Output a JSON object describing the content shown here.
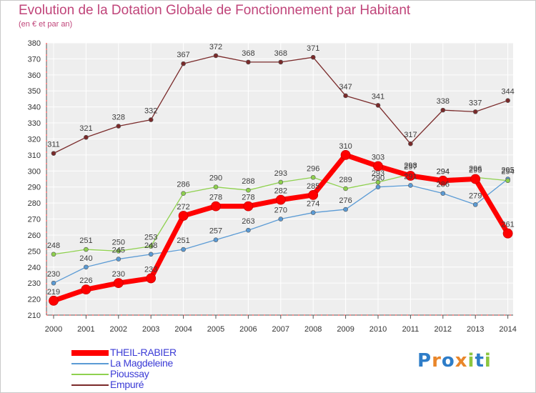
{
  "chart_data": {
    "type": "line",
    "title": "Evolution de la Dotation Globale de Fonctionnement par Habitant",
    "subtitle": "(en € et par an)",
    "xlabel": "",
    "ylabel": "",
    "ylim": [
      210,
      380
    ],
    "ytick_step": 10,
    "grid": true,
    "categories": [
      "2000",
      "2001",
      "2002",
      "2003",
      "2004",
      "2005",
      "2006",
      "2007",
      "2008",
      "2009",
      "2010",
      "2011",
      "2012",
      "2013",
      "2014"
    ],
    "series": [
      {
        "name": "THEIL-RABIER",
        "color": "#ff0000",
        "values": [
          219,
          226,
          230,
          233,
          272,
          278,
          278,
          282,
          285,
          310,
          303,
          297,
          294,
          295,
          261
        ]
      },
      {
        "name": "La Magdeleine",
        "color": "#5b9bd5",
        "values": [
          230,
          240,
          245,
          248,
          251,
          257,
          263,
          270,
          274,
          276,
          290,
          291,
          286,
          279,
          295
        ]
      },
      {
        "name": "Pioussay",
        "color": "#8fd14f",
        "values": [
          248,
          251,
          250,
          253,
          286,
          290,
          288,
          293,
          296,
          289,
          293,
          298,
          294,
          296,
          294
        ]
      },
      {
        "name": "Empuré",
        "color": "#7a2a2a",
        "values": [
          311,
          321,
          328,
          332,
          367,
          372,
          368,
          368,
          371,
          347,
          341,
          317,
          338,
          337,
          344
        ]
      }
    ],
    "legend_position": "bottom-left"
  },
  "logo": {
    "parts": [
      "P",
      "r",
      "o",
      "x",
      "i",
      "t",
      "i"
    ],
    "colors": [
      "#2e7dc8",
      "#e9862a",
      "#2e7dc8",
      "#e9862a",
      "#8cc63f",
      "#2e7dc8",
      "#8cc63f"
    ]
  }
}
